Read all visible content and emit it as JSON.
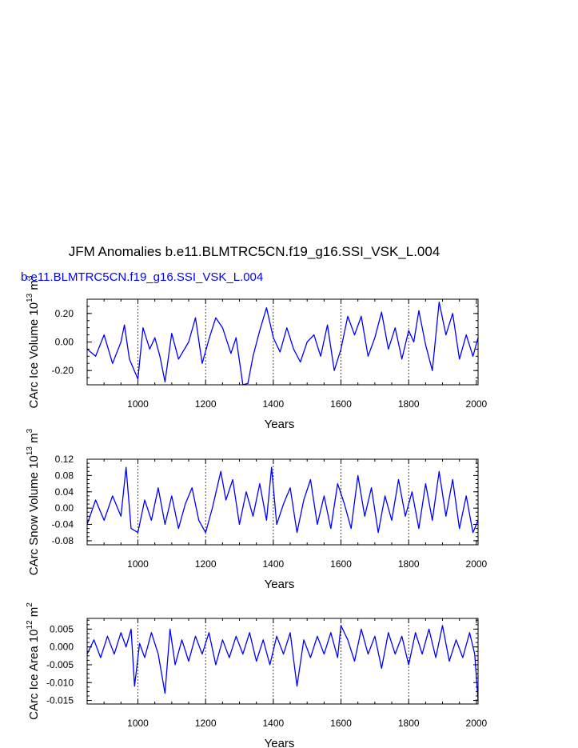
{
  "page": {
    "title": "JFM Anomalies b.e11.BLMTRC5CN.f19_g16.SSI_VSK_L.004",
    "subtitle": "b.e11.BLMTRC5CN.f19_g16.SSI_VSK_L.004",
    "series_color": "#0000ff"
  },
  "chart_data": [
    {
      "type": "line",
      "title": "",
      "xlabel": "Years",
      "ylabel": "CArc Ice Volume 10",
      "ylabel_sup": "13",
      "ylabel_unit": "m",
      "ylabel_unit_sup": "3",
      "xlim": [
        850,
        2005
      ],
      "ylim": [
        -0.3,
        0.3
      ],
      "xticks": [
        1000,
        1200,
        1400,
        1600,
        1800,
        2000
      ],
      "yticks": [
        -0.2,
        0.0,
        0.2
      ],
      "ytick_labels": [
        "-0.20",
        "0.00",
        "0.20"
      ],
      "grid_x": [
        1000,
        1200,
        1400,
        1600,
        1800
      ],
      "series": [
        {
          "name": "Ice Volume",
          "x": [
            850,
            875,
            900,
            925,
            950,
            960,
            975,
            1000,
            1015,
            1035,
            1050,
            1065,
            1080,
            1100,
            1120,
            1150,
            1170,
            1190,
            1210,
            1230,
            1250,
            1275,
            1290,
            1310,
            1325,
            1340,
            1360,
            1380,
            1400,
            1420,
            1440,
            1460,
            1480,
            1500,
            1520,
            1540,
            1560,
            1580,
            1600,
            1620,
            1640,
            1660,
            1680,
            1700,
            1720,
            1740,
            1760,
            1780,
            1800,
            1815,
            1830,
            1850,
            1870,
            1890,
            1910,
            1930,
            1950,
            1970,
            1990,
            2005
          ],
          "values": [
            -0.05,
            -0.1,
            0.05,
            -0.15,
            0.0,
            0.12,
            -0.12,
            -0.26,
            0.1,
            -0.05,
            0.03,
            -0.1,
            -0.28,
            0.06,
            -0.12,
            0.0,
            0.17,
            -0.15,
            0.02,
            0.17,
            0.1,
            -0.08,
            0.03,
            -0.3,
            -0.29,
            -0.1,
            0.08,
            0.24,
            0.03,
            -0.07,
            0.1,
            -0.05,
            -0.14,
            0.0,
            0.05,
            -0.1,
            0.12,
            -0.2,
            -0.05,
            0.18,
            0.05,
            0.18,
            -0.1,
            0.03,
            0.21,
            -0.05,
            0.1,
            -0.12,
            0.08,
            0.0,
            0.22,
            -0.02,
            -0.2,
            0.28,
            0.05,
            0.2,
            -0.12,
            0.05,
            -0.1,
            0.03
          ]
        }
      ]
    },
    {
      "type": "line",
      "title": "",
      "xlabel": "Years",
      "ylabel": "CArc Snow Volume 10",
      "ylabel_sup": "13",
      "ylabel_unit": "m",
      "ylabel_unit_sup": "3",
      "xlim": [
        850,
        2005
      ],
      "ylim": [
        -0.09,
        0.12
      ],
      "xticks": [
        1000,
        1200,
        1400,
        1600,
        1800,
        2000
      ],
      "yticks": [
        -0.08,
        -0.04,
        0.0,
        0.04,
        0.08,
        0.12
      ],
      "ytick_labels": [
        "-0.08",
        "-0.04",
        "0.00",
        "0.04",
        "0.08",
        "0.12"
      ],
      "grid_x": [
        1000,
        1200,
        1400,
        1600,
        1800
      ],
      "series": [
        {
          "name": "Snow Volume",
          "x": [
            850,
            875,
            900,
            925,
            950,
            965,
            980,
            1000,
            1020,
            1040,
            1060,
            1080,
            1100,
            1120,
            1140,
            1160,
            1180,
            1200,
            1220,
            1245,
            1260,
            1280,
            1300,
            1320,
            1340,
            1360,
            1380,
            1395,
            1410,
            1430,
            1450,
            1470,
            1490,
            1510,
            1530,
            1550,
            1570,
            1590,
            1610,
            1630,
            1650,
            1670,
            1690,
            1710,
            1730,
            1750,
            1770,
            1790,
            1810,
            1830,
            1850,
            1870,
            1890,
            1910,
            1930,
            1950,
            1970,
            1990,
            2005
          ],
          "values": [
            -0.04,
            0.02,
            -0.03,
            0.03,
            -0.02,
            0.1,
            -0.05,
            -0.06,
            0.02,
            -0.03,
            0.05,
            -0.04,
            0.03,
            -0.05,
            0.01,
            0.05,
            -0.03,
            -0.06,
            0.0,
            0.09,
            0.02,
            0.07,
            -0.04,
            0.04,
            -0.02,
            0.06,
            -0.03,
            0.1,
            -0.04,
            0.01,
            0.05,
            -0.06,
            0.02,
            0.07,
            -0.04,
            0.03,
            -0.05,
            0.06,
            0.01,
            -0.05,
            0.08,
            -0.02,
            0.05,
            -0.06,
            0.03,
            -0.03,
            0.07,
            -0.02,
            0.04,
            -0.05,
            0.06,
            -0.03,
            0.09,
            -0.02,
            0.07,
            -0.05,
            0.03,
            -0.06,
            -0.03
          ]
        }
      ]
    },
    {
      "type": "line",
      "title": "",
      "xlabel": "Years",
      "ylabel": "CArc Ice Area 10",
      "ylabel_sup": "12",
      "ylabel_unit": "m",
      "ylabel_unit_sup": "2",
      "xlim": [
        850,
        2005
      ],
      "ylim": [
        -0.016,
        0.008
      ],
      "xticks": [
        1000,
        1200,
        1400,
        1600,
        1800,
        2000
      ],
      "yticks": [
        -0.015,
        -0.01,
        -0.005,
        0.0,
        0.005
      ],
      "ytick_labels": [
        "-0.015",
        "-0.010",
        "-0.005",
        "0.000",
        "0.005"
      ],
      "grid_x": [
        1000,
        1200,
        1400,
        1600,
        1800
      ],
      "series": [
        {
          "name": "Ice Area",
          "x": [
            850,
            870,
            890,
            910,
            930,
            950,
            965,
            980,
            990,
            1005,
            1020,
            1040,
            1060,
            1080,
            1095,
            1110,
            1130,
            1150,
            1170,
            1190,
            1210,
            1230,
            1250,
            1270,
            1290,
            1310,
            1330,
            1350,
            1370,
            1390,
            1410,
            1430,
            1450,
            1470,
            1490,
            1510,
            1530,
            1550,
            1570,
            1590,
            1600,
            1620,
            1640,
            1660,
            1680,
            1700,
            1720,
            1740,
            1760,
            1780,
            1800,
            1820,
            1840,
            1860,
            1880,
            1900,
            1920,
            1940,
            1960,
            1980,
            1995,
            2005
          ],
          "values": [
            -0.002,
            0.002,
            -0.003,
            0.003,
            -0.002,
            0.004,
            0.0,
            0.005,
            -0.011,
            0.001,
            -0.003,
            0.004,
            -0.002,
            -0.013,
            0.005,
            -0.005,
            0.002,
            -0.004,
            0.003,
            -0.002,
            0.004,
            -0.005,
            0.002,
            -0.003,
            0.003,
            -0.002,
            0.004,
            -0.004,
            0.002,
            -0.005,
            0.003,
            -0.002,
            0.004,
            -0.011,
            0.002,
            -0.003,
            0.003,
            -0.002,
            0.004,
            -0.003,
            0.006,
            0.002,
            -0.004,
            0.005,
            -0.002,
            0.003,
            -0.006,
            0.004,
            -0.002,
            0.003,
            -0.005,
            0.004,
            -0.002,
            0.005,
            -0.003,
            0.006,
            -0.004,
            0.002,
            -0.003,
            0.004,
            -0.002,
            -0.015
          ]
        }
      ]
    }
  ]
}
